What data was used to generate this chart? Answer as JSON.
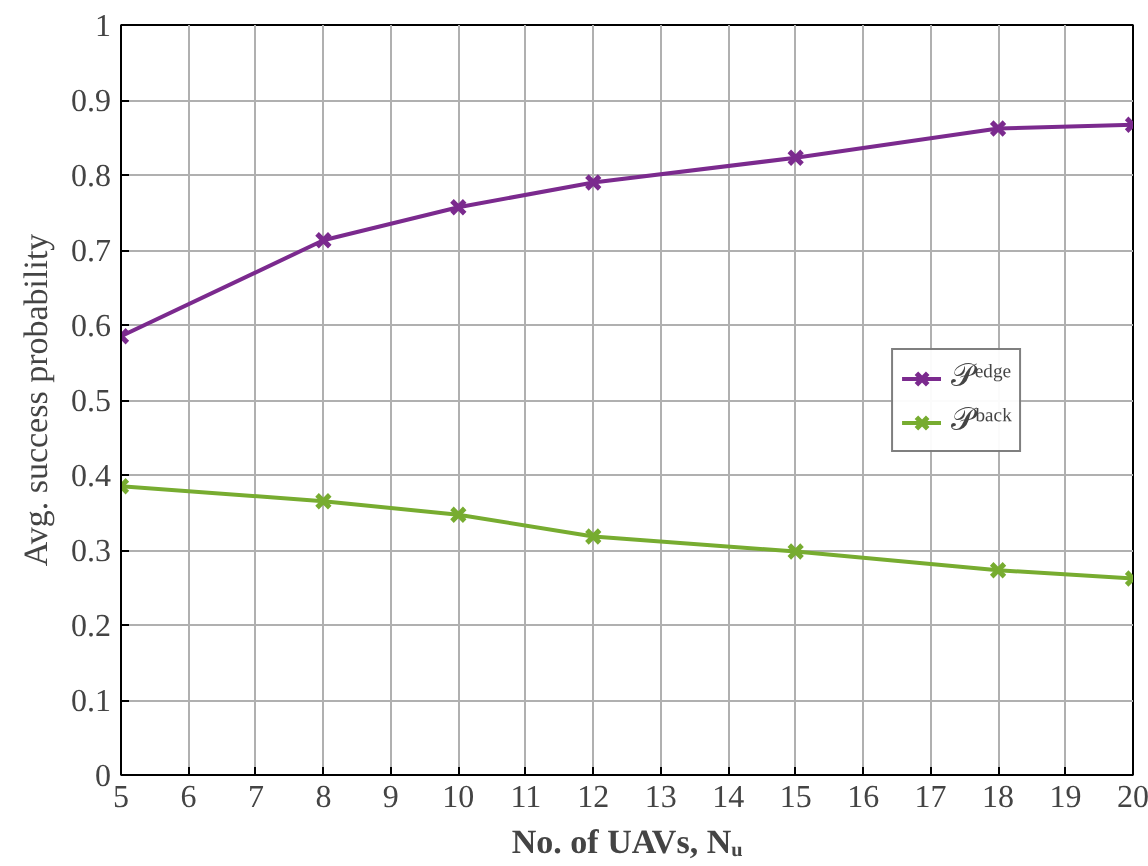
{
  "chart_data": {
    "type": "line",
    "xlabel": "No. of UAVs, Nᵤ",
    "ylabel": "Avg. success probability",
    "x": [
      5,
      8,
      10,
      12,
      15,
      18,
      20
    ],
    "series": [
      {
        "name": "𝒫ᵉᵈᵍᵉ",
        "color": "#7b2a8e",
        "values": [
          0.585,
          0.713,
          0.757,
          0.79,
          0.823,
          0.862,
          0.867
        ]
      },
      {
        "name": "𝒫ᵇᵃᶜᵏ",
        "color": "#77ac30",
        "values": [
          0.385,
          0.365,
          0.347,
          0.318,
          0.298,
          0.273,
          0.262
        ]
      }
    ],
    "xlim": [
      5,
      20
    ],
    "xticks": [
      5,
      6,
      7,
      8,
      9,
      10,
      11,
      12,
      13,
      14,
      15,
      16,
      17,
      18,
      19,
      20
    ],
    "ylim": [
      0,
      1
    ],
    "yticks": [
      0,
      0.1,
      0.2,
      0.3,
      0.4,
      0.5,
      0.6,
      0.7,
      0.8,
      0.9,
      1
    ],
    "grid": true,
    "legend": "right",
    "marker": "cross",
    "line_style": "solid"
  }
}
